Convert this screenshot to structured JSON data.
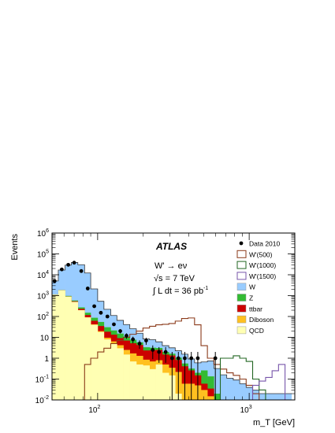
{
  "chart_data": {
    "type": "histogram-stacked-log",
    "xlabel": "m_T [GeV]",
    "ylabel": "Events",
    "xscale": "log",
    "yscale": "log",
    "xlim": [
      50,
      2000
    ],
    "ylim": [
      0.01,
      1000000
    ],
    "x_ticks_major": [
      {
        "value": 100,
        "base": "10",
        "exp": "2"
      },
      {
        "value": 1000,
        "base": "10",
        "exp": "3"
      }
    ],
    "y_ticks_major": [
      {
        "value": 0.01,
        "base": "10",
        "exp": "-2"
      },
      {
        "value": 0.1,
        "base": "10",
        "exp": "-1"
      },
      {
        "value": 1,
        "base": "1",
        "exp": ""
      },
      {
        "value": 10,
        "base": "10",
        "exp": ""
      },
      {
        "value": 100,
        "base": "10",
        "exp": "2"
      },
      {
        "value": 1000,
        "base": "10",
        "exp": "3"
      },
      {
        "value": 10000,
        "base": "10",
        "exp": "4"
      },
      {
        "value": 100000,
        "base": "10",
        "exp": "5"
      },
      {
        "value": 1000000,
        "base": "10",
        "exp": "6"
      }
    ],
    "annotations": {
      "experiment": "ATLAS",
      "process": "W' → eν",
      "energy": "√s = 7 TeV",
      "lumi": "∫ L dt = 36 pb",
      "lumi_exp": "-1"
    },
    "bin_edges": [
      50,
      55,
      61,
      67,
      74,
      82,
      90,
      100,
      110,
      122,
      134,
      148,
      163,
      180,
      199,
      220,
      242,
      267,
      295,
      325,
      358,
      395,
      436,
      481,
      530,
      585,
      645,
      711,
      785,
      866,
      955,
      1054,
      1163,
      1283,
      1416,
      1562,
      1724,
      1902
    ],
    "stack_order": [
      "QCD",
      "Diboson",
      "ttbar",
      "Z",
      "W"
    ],
    "stacks": [
      {
        "name": "QCD",
        "color": "#ffffb3",
        "values": [
          1100,
          1800,
          900,
          500,
          200,
          90,
          40,
          18,
          8,
          5,
          3,
          1.5,
          0.7,
          0.5,
          0.45,
          0.3,
          0.5,
          0.2,
          0.15,
          0.02,
          0.01,
          0.01,
          0.01,
          0.01,
          0.01,
          0.01,
          0.01,
          0.01,
          0.01,
          0.01,
          0.01,
          0.01,
          0.01,
          0.01,
          0.01,
          0.01,
          0.01
        ]
      },
      {
        "name": "Diboson",
        "color": "#ffc020",
        "values": [
          1,
          2,
          3,
          4,
          3,
          2,
          2,
          1.8,
          1.6,
          1.4,
          1.2,
          1,
          1.0,
          0.8,
          0.4,
          0.4,
          0.3,
          0.3,
          0.2,
          0.2,
          0.05,
          0.05,
          0.04,
          0.02,
          0.005,
          0.0,
          0,
          0,
          0,
          0,
          0,
          0,
          0,
          0,
          0,
          0,
          0
        ]
      },
      {
        "name": "ttbar",
        "color": "#cc0000",
        "values": [
          8,
          12,
          20,
          30,
          30,
          25,
          20,
          15,
          9,
          7,
          5,
          4.5,
          3.5,
          3,
          1.5,
          1.7,
          1.7,
          1.0,
          1.0,
          0.6,
          0.35,
          0.2,
          0.1,
          0.03,
          0.02,
          0.0,
          0,
          0,
          0,
          0,
          0,
          0,
          0,
          0,
          0,
          0,
          0
        ]
      },
      {
        "name": "Z",
        "color": "#33bb33",
        "values": [
          20,
          40,
          50,
          50,
          40,
          35,
          25,
          20,
          12,
          8,
          6,
          4,
          2.5,
          1.5,
          1.0,
          0.8,
          0.6,
          0.5,
          0.3,
          0.25,
          0.15,
          0.06,
          0.05,
          0.2,
          0.1,
          0.01,
          0,
          0,
          0,
          0,
          0,
          0,
          0,
          0,
          0,
          0,
          0
        ]
      },
      {
        "name": "W",
        "color": "#99ccff",
        "values": [
          3900,
          15000,
          28000,
          38000,
          30000,
          12000,
          2000,
          480,
          190,
          90,
          50,
          30,
          18,
          10,
          5,
          4.5,
          3,
          2,
          1.5,
          1.2,
          1,
          0.6,
          0.4,
          0.4,
          0.6,
          0.3,
          0.15,
          0.1,
          0.08,
          0.05,
          0.03,
          0.02,
          0.01,
          0.01,
          0.01,
          0.01,
          0.01
        ]
      }
    ],
    "signals": [
      {
        "name": "W'(500)",
        "color": "#8b3a1a",
        "values": [
          0.01,
          0.01,
          0.01,
          0.01,
          0.01,
          0.5,
          1.0,
          2.0,
          3.0,
          5.0,
          7.0,
          10.0,
          14.0,
          20.0,
          28.0,
          34.0,
          40.0,
          42.0,
          46.0,
          60.0,
          80.0,
          85.0,
          40.0,
          4.0,
          1.0,
          0.5,
          0.3,
          0.2,
          0.15,
          0.1,
          0.05,
          0.02,
          0.01,
          0.01,
          0.01,
          0.01,
          0.01
        ]
      },
      {
        "name": "W'(1000)",
        "color": "#226622",
        "values": [
          0.01,
          0.01,
          0.01,
          0.01,
          0.01,
          0.01,
          0.01,
          0.01,
          0.01,
          0.01,
          0.01,
          0.01,
          0.01,
          0.01,
          0.01,
          0.01,
          0.01,
          0.01,
          0.01,
          0.01,
          0.01,
          0.01,
          0.01,
          0.01,
          0.01,
          0.01,
          1.0,
          1.0,
          1.3,
          1.0,
          0.7,
          0.1,
          0.03,
          0.01,
          0.01,
          0.01,
          0.01
        ]
      },
      {
        "name": "W'(1500)",
        "color": "#7755aa",
        "values": [
          0.01,
          0.01,
          0.01,
          0.01,
          0.01,
          0.01,
          0.01,
          0.01,
          0.01,
          0.01,
          0.01,
          0.01,
          0.01,
          0.01,
          0.01,
          0.01,
          0.01,
          0.01,
          0.01,
          0.01,
          0.01,
          0.01,
          0.01,
          0.01,
          0.01,
          0.01,
          0.01,
          0.01,
          0.01,
          0.01,
          0.01,
          0.05,
          0.08,
          0.12,
          0.25,
          0.5,
          0.01
        ]
      }
    ],
    "data_points": {
      "name": "Data 2010",
      "color": "#000000",
      "x": [
        52,
        58,
        64,
        70,
        78,
        86,
        95,
        105,
        116,
        128,
        141,
        155,
        171,
        189,
        209,
        231,
        254,
        281,
        310,
        341,
        376,
        415,
        458,
        598
      ],
      "y": [
        5000,
        18000,
        30000,
        38000,
        15000,
        2200,
        310,
        150,
        100,
        42,
        20,
        12,
        8,
        5,
        7,
        2.5,
        2,
        2,
        1,
        1,
        1,
        1,
        1,
        1
      ],
      "yerr": [
        70,
        135,
        175,
        195,
        120,
        47,
        18,
        12,
        10,
        6.5,
        4.5,
        3.5,
        2.8,
        2.2,
        2.6,
        1.6,
        1.4,
        1.4,
        1.0,
        1.0,
        1.0,
        1.0,
        1.0,
        1.0
      ]
    },
    "legend": {
      "placement": "top-right",
      "entries": [
        {
          "label": "Data 2010",
          "kind": "marker",
          "color": "#000000"
        },
        {
          "label": "W'(500)",
          "kind": "line",
          "color": "#8b3a1a"
        },
        {
          "label": "W'(1000)",
          "kind": "line",
          "color": "#226622"
        },
        {
          "label": "W'(1500)",
          "kind": "line",
          "color": "#7755aa"
        },
        {
          "label": "W",
          "kind": "fill",
          "color": "#99ccff"
        },
        {
          "label": "Z",
          "kind": "fill",
          "color": "#33bb33"
        },
        {
          "label": "ttbar",
          "kind": "fill",
          "color": "#cc0000"
        },
        {
          "label": "Diboson",
          "kind": "fill",
          "color": "#ffc020"
        },
        {
          "label": "QCD",
          "kind": "fill",
          "color": "#ffffb3"
        }
      ]
    }
  }
}
